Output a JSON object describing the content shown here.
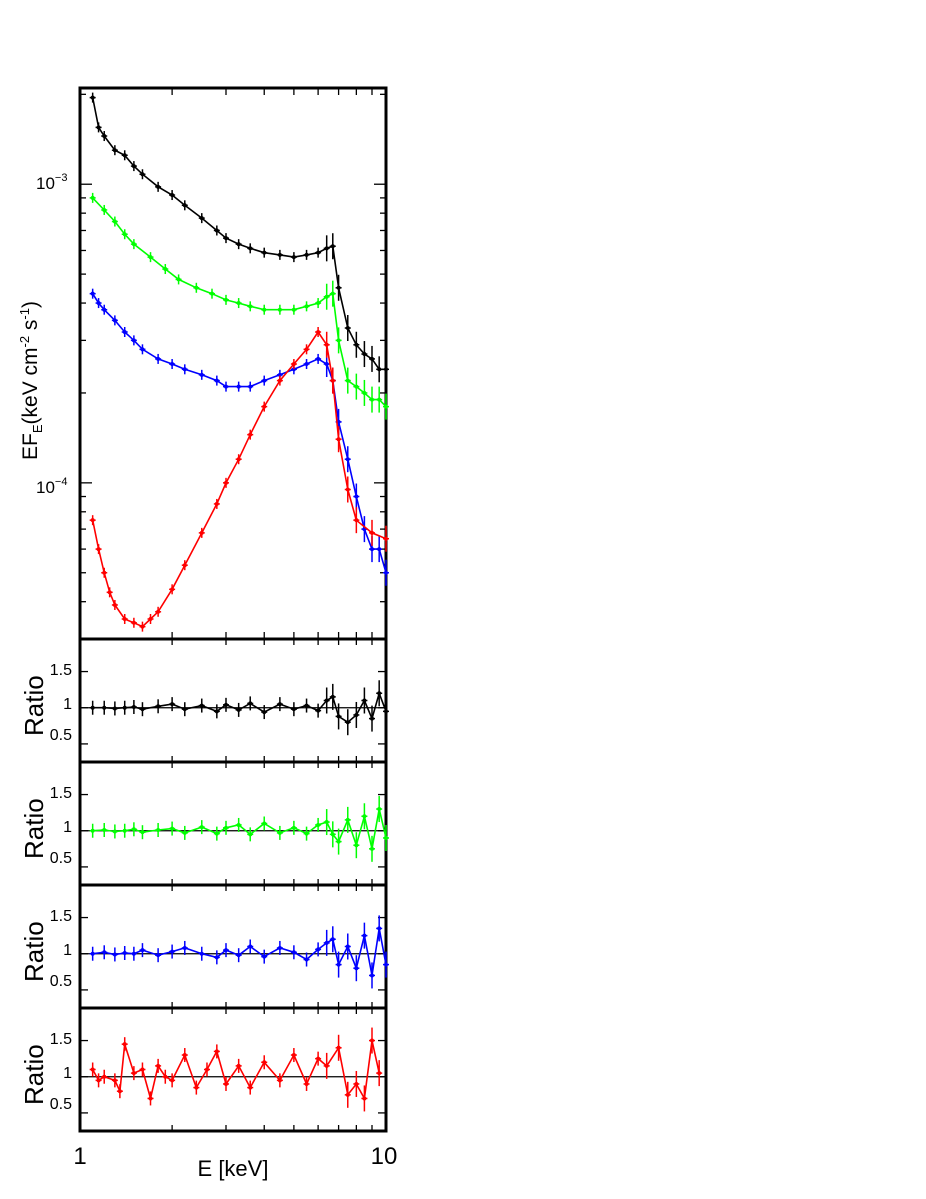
{
  "chart_data": [
    {
      "type": "scatter",
      "panel": "spectrum",
      "xlabel": "E [keV]",
      "ylabel": "EF_E(keV cm^-2 s^-1)",
      "ylabel_parts": {
        "main": "EF",
        "sub": "E",
        "rest1": "(keV cm",
        "sup1": "-2",
        "rest2": " s",
        "sup2": "-1",
        "rest3": ")"
      },
      "x_scale": "log",
      "y_scale": "log",
      "xlim": [
        1,
        10
      ],
      "ylim": [
        3e-05,
        0.0021
      ],
      "y_major_ticks": [
        {
          "value": 0.001,
          "mantissa": "10",
          "exp": "−3"
        },
        {
          "value": 0.0001,
          "mantissa": "10",
          "exp": "−4"
        }
      ],
      "series": [
        {
          "color": "#000000",
          "x": [
            1.1,
            1.15,
            1.2,
            1.3,
            1.4,
            1.5,
            1.6,
            1.8,
            2.0,
            2.2,
            2.5,
            2.8,
            3.0,
            3.3,
            3.6,
            4.0,
            4.5,
            5.0,
            5.5,
            6.0,
            6.4,
            6.7,
            7.0,
            7.5,
            8.0,
            8.5,
            9.0,
            9.5,
            10.0
          ],
          "y": [
            0.00195,
            0.00155,
            0.00145,
            0.0013,
            0.00125,
            0.00115,
            0.00108,
            0.00098,
            0.00092,
            0.00085,
            0.00077,
            0.0007,
            0.00066,
            0.00063,
            0.00061,
            0.00059,
            0.00058,
            0.00057,
            0.00058,
            0.00059,
            0.00061,
            0.00062,
            0.00045,
            0.00033,
            0.00029,
            0.00027,
            0.00026,
            0.00024,
            0.00024
          ]
        },
        {
          "color": "#00ff00",
          "x": [
            1.1,
            1.2,
            1.3,
            1.4,
            1.5,
            1.7,
            1.9,
            2.1,
            2.4,
            2.7,
            3.0,
            3.3,
            3.6,
            4.0,
            4.5,
            5.0,
            5.5,
            6.0,
            6.4,
            6.7,
            7.0,
            7.5,
            8.0,
            8.5,
            9.0,
            9.5,
            10.0
          ],
          "y": [
            0.0009,
            0.00082,
            0.00075,
            0.00068,
            0.00063,
            0.00057,
            0.00052,
            0.00048,
            0.00045,
            0.00043,
            0.00041,
            0.0004,
            0.00039,
            0.00038,
            0.00038,
            0.00038,
            0.00039,
            0.0004,
            0.00042,
            0.00043,
            0.0003,
            0.00022,
            0.00021,
            0.0002,
            0.00019,
            0.00019,
            0.00018
          ]
        },
        {
          "color": "#0000ff",
          "x": [
            1.1,
            1.15,
            1.2,
            1.3,
            1.4,
            1.5,
            1.6,
            1.8,
            2.0,
            2.2,
            2.5,
            2.8,
            3.0,
            3.3,
            3.6,
            4.0,
            4.5,
            5.0,
            5.5,
            6.0,
            6.4,
            6.7,
            7.0,
            7.5,
            8.0,
            8.5,
            9.0,
            9.5,
            10.0
          ],
          "y": [
            0.00043,
            0.0004,
            0.00038,
            0.00035,
            0.00032,
            0.0003,
            0.00028,
            0.00026,
            0.00025,
            0.00024,
            0.00023,
            0.00022,
            0.00021,
            0.00021,
            0.00021,
            0.00022,
            0.00023,
            0.00024,
            0.00025,
            0.00026,
            0.00025,
            0.00022,
            0.00016,
            0.00012,
            9e-05,
            7e-05,
            6e-05,
            6e-05,
            5e-05
          ]
        },
        {
          "color": "#ff0000",
          "x": [
            1.1,
            1.15,
            1.2,
            1.25,
            1.3,
            1.4,
            1.5,
            1.6,
            1.7,
            1.8,
            2.0,
            2.2,
            2.5,
            2.8,
            3.0,
            3.3,
            3.6,
            4.0,
            4.5,
            5.0,
            5.5,
            6.0,
            6.4,
            6.7,
            7.0,
            7.5,
            8.0,
            9.0,
            10.0
          ],
          "y": [
            7.5e-05,
            6e-05,
            5e-05,
            4.3e-05,
            3.9e-05,
            3.5e-05,
            3.4e-05,
            3.3e-05,
            3.5e-05,
            3.7e-05,
            4.4e-05,
            5.3e-05,
            6.8e-05,
            8.5e-05,
            0.0001,
            0.00012,
            0.000145,
            0.00018,
            0.00022,
            0.00025,
            0.00028,
            0.00032,
            0.00029,
            0.00022,
            0.00014,
            9.5e-05,
            7.5e-05,
            6.8e-05,
            6.5e-05
          ]
        }
      ]
    },
    {
      "type": "scatter",
      "panel": "ratio",
      "ylabel": "Ratio",
      "x_scale": "log",
      "xlim": [
        1,
        10
      ],
      "ylim": [
        0.25,
        1.95
      ],
      "y_ticks": [
        {
          "value": 0.5,
          "label": "0.5"
        },
        {
          "value": 1,
          "label": "1"
        },
        {
          "value": 1.5,
          "label": "1.5"
        }
      ],
      "reference_line": 1,
      "series": [
        {
          "color": "#000000",
          "x": [
            1.1,
            1.2,
            1.3,
            1.4,
            1.5,
            1.6,
            1.8,
            2.0,
            2.2,
            2.5,
            2.8,
            3.0,
            3.3,
            3.6,
            4.0,
            4.5,
            5.0,
            5.5,
            6.0,
            6.4,
            6.7,
            7.0,
            7.5,
            8.0,
            8.5,
            9.0,
            9.5,
            10.0
          ],
          "y": [
            1.0,
            1.0,
            0.99,
            1.0,
            1.01,
            0.98,
            1.02,
            1.05,
            0.98,
            1.03,
            0.95,
            1.04,
            0.97,
            1.06,
            0.94,
            1.05,
            0.98,
            1.03,
            0.96,
            1.1,
            1.15,
            0.88,
            0.8,
            0.9,
            1.1,
            0.85,
            1.2,
            0.95
          ]
        }
      ]
    },
    {
      "type": "scatter",
      "panel": "ratio",
      "ylabel": "Ratio",
      "x_scale": "log",
      "xlim": [
        1,
        10
      ],
      "ylim": [
        0.25,
        1.95
      ],
      "y_ticks": [
        {
          "value": 0.5,
          "label": "0.5"
        },
        {
          "value": 1,
          "label": "1"
        },
        {
          "value": 1.5,
          "label": "1.5"
        }
      ],
      "reference_line": 1,
      "series": [
        {
          "color": "#00ff00",
          "x": [
            1.1,
            1.2,
            1.3,
            1.4,
            1.5,
            1.6,
            1.8,
            2.0,
            2.2,
            2.5,
            2.8,
            3.0,
            3.3,
            3.6,
            4.0,
            4.5,
            5.0,
            5.5,
            6.0,
            6.4,
            6.7,
            7.0,
            7.5,
            8.0,
            8.5,
            9.0,
            9.5,
            10.0
          ],
          "y": [
            1.0,
            1.01,
            0.99,
            1.0,
            1.02,
            0.98,
            1.01,
            1.03,
            0.97,
            1.05,
            0.96,
            1.04,
            1.08,
            0.95,
            1.1,
            0.97,
            1.04,
            0.96,
            1.08,
            1.12,
            0.95,
            0.85,
            1.15,
            0.8,
            1.2,
            0.75,
            1.3,
            0.9
          ]
        }
      ]
    },
    {
      "type": "scatter",
      "panel": "ratio",
      "ylabel": "Ratio",
      "x_scale": "log",
      "xlim": [
        1,
        10
      ],
      "ylim": [
        0.25,
        1.95
      ],
      "y_ticks": [
        {
          "value": 0.5,
          "label": "0.5"
        },
        {
          "value": 1,
          "label": "1"
        },
        {
          "value": 1.5,
          "label": "1.5"
        }
      ],
      "reference_line": 1,
      "series": [
        {
          "color": "#0000ff",
          "x": [
            1.1,
            1.2,
            1.3,
            1.4,
            1.5,
            1.6,
            1.8,
            2.0,
            2.2,
            2.5,
            2.8,
            3.0,
            3.3,
            3.6,
            4.0,
            4.5,
            5.0,
            5.5,
            6.0,
            6.4,
            6.7,
            7.0,
            7.5,
            8.0,
            8.5,
            9.0,
            9.5,
            10.0
          ],
          "y": [
            1.0,
            1.02,
            0.99,
            1.01,
            1.0,
            1.05,
            0.98,
            1.03,
            1.08,
            1.0,
            0.95,
            1.05,
            0.98,
            1.1,
            0.96,
            1.08,
            1.02,
            0.92,
            1.06,
            1.15,
            1.2,
            0.85,
            1.1,
            0.8,
            1.25,
            0.7,
            1.35,
            0.85
          ]
        }
      ]
    },
    {
      "type": "scatter",
      "panel": "ratio",
      "xlabel": "E [keV]",
      "ylabel": "Ratio",
      "x_scale": "log",
      "xlim": [
        1,
        10
      ],
      "x_ticks": [
        {
          "value": 1,
          "label": "1"
        },
        {
          "value": 10,
          "label": "10"
        }
      ],
      "ylim": [
        0.25,
        1.95
      ],
      "y_ticks": [
        {
          "value": 0.5,
          "label": "0.5"
        },
        {
          "value": 1,
          "label": "1"
        },
        {
          "value": 1.5,
          "label": "1.5"
        }
      ],
      "reference_line": 1,
      "series": [
        {
          "color": "#ff0000",
          "x": [
            1.1,
            1.15,
            1.2,
            1.3,
            1.35,
            1.4,
            1.5,
            1.6,
            1.7,
            1.8,
            1.9,
            2.0,
            2.2,
            2.4,
            2.6,
            2.8,
            3.0,
            3.3,
            3.6,
            4.0,
            4.5,
            5.0,
            5.5,
            6.0,
            6.4,
            7.0,
            7.5,
            8.0,
            8.5,
            9.0,
            9.5
          ],
          "y": [
            1.1,
            0.95,
            1.0,
            0.95,
            0.8,
            1.45,
            1.05,
            1.1,
            0.7,
            1.15,
            1.0,
            0.95,
            1.3,
            0.85,
            1.1,
            1.35,
            0.9,
            1.15,
            0.85,
            1.2,
            0.95,
            1.3,
            0.9,
            1.25,
            1.15,
            1.4,
            0.75,
            0.9,
            0.7,
            1.5,
            1.05
          ]
        }
      ]
    }
  ]
}
